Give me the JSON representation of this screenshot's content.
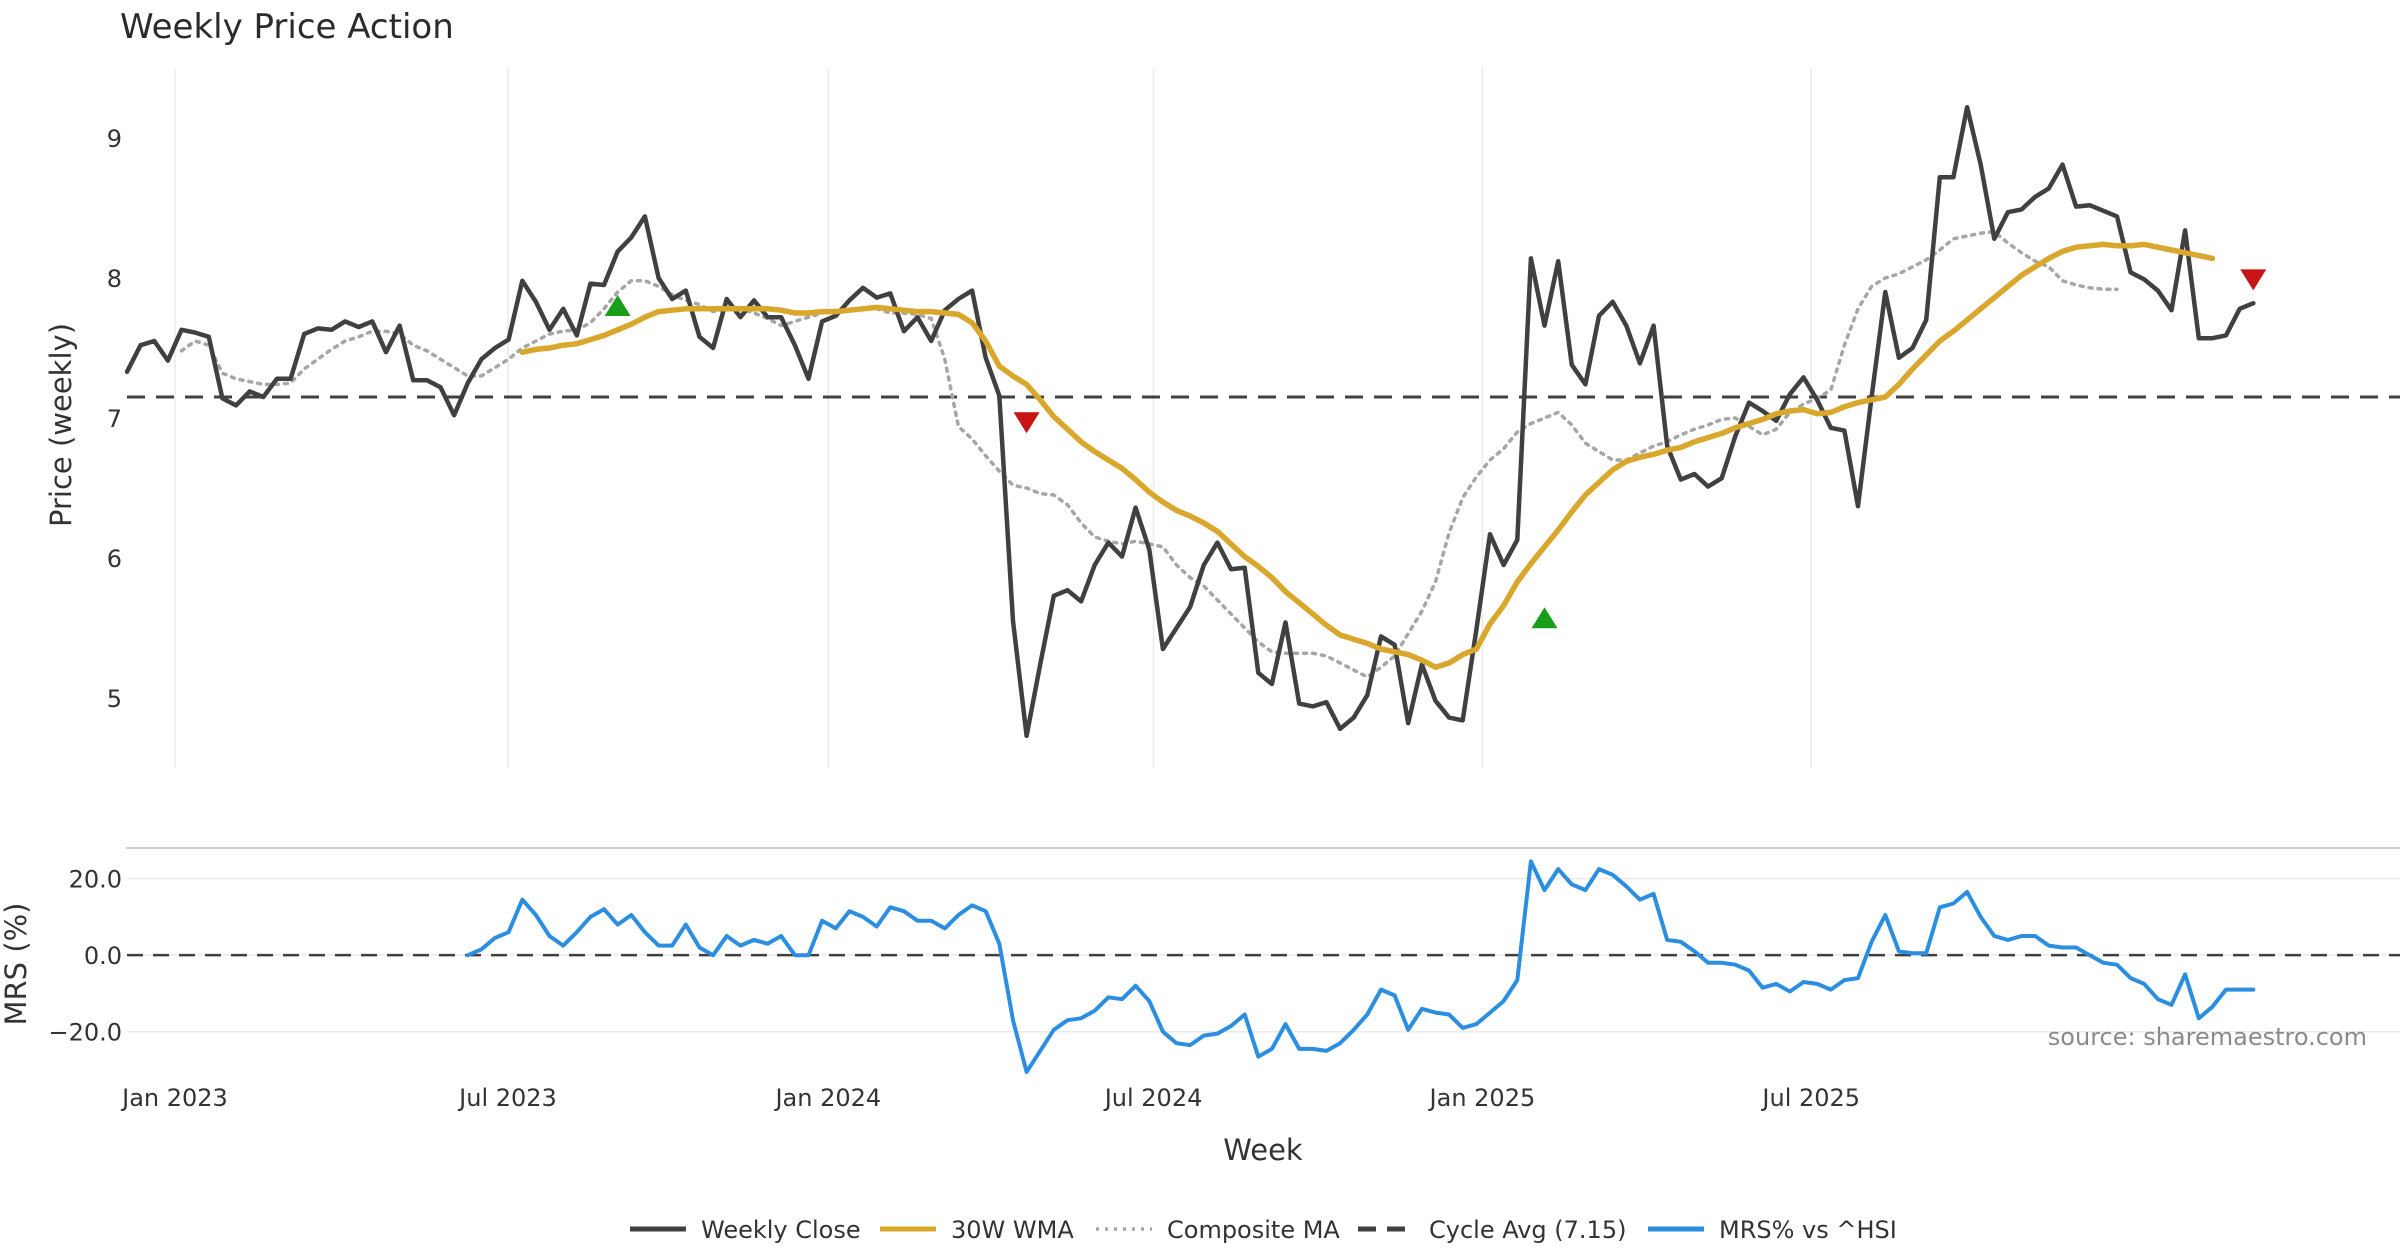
{
  "chart_data": {
    "type": "line",
    "title": "Weekly Price Action",
    "xlabel": "Week",
    "x_ticks": [
      "Jan 2023",
      "Jul 2023",
      "Jan 2024",
      "Jul 2024",
      "Jan 2025",
      "Jul 2025"
    ],
    "price_panel": {
      "ylabel": "Price (weekly)",
      "ylim": [
        4.5,
        9.5
      ],
      "yticks": [
        "5",
        "6",
        "7",
        "8",
        "9"
      ],
      "cycle_avg": 7.15,
      "series": [
        {
          "name": "Weekly Close",
          "start_week": 0,
          "color": "#404040",
          "values": [
            7.33,
            7.52,
            7.55,
            7.41,
            7.63,
            7.61,
            7.58,
            7.14,
            7.09,
            7.19,
            7.15,
            7.28,
            7.28,
            7.6,
            7.64,
            7.63,
            7.69,
            7.65,
            7.69,
            7.47,
            7.66,
            7.27,
            7.27,
            7.22,
            7.02,
            7.25,
            7.42,
            7.5,
            7.56,
            7.98,
            7.83,
            7.63,
            7.78,
            7.59,
            7.96,
            7.95,
            8.19,
            8.29,
            8.44,
            8.0,
            7.85,
            7.91,
            7.58,
            7.5,
            7.85,
            7.72,
            7.84,
            7.72,
            7.72,
            7.52,
            7.28,
            7.69,
            7.73,
            7.84,
            7.93,
            7.86,
            7.89,
            7.62,
            7.72,
            7.55,
            7.77,
            7.85,
            7.91,
            7.43,
            7.16,
            5.55,
            4.73,
            5.24,
            5.73,
            5.77,
            5.69,
            5.95,
            6.11,
            6.01,
            6.36,
            6.06,
            5.35,
            5.5,
            5.65,
            5.95,
            6.11,
            5.92,
            5.93,
            5.18,
            5.1,
            5.54,
            4.96,
            4.94,
            4.97,
            4.78,
            4.86,
            5.02,
            5.44,
            5.38,
            4.82,
            5.24,
            4.98,
            4.86,
            4.84,
            5.49,
            6.17,
            5.95,
            6.13,
            8.14,
            7.66,
            8.12,
            7.38,
            7.24,
            7.73,
            7.83,
            7.66,
            7.39,
            7.66,
            6.8,
            6.56,
            6.6,
            6.51,
            6.57,
            6.87,
            7.11,
            7.05,
            6.98,
            7.17,
            7.29,
            7.13,
            6.93,
            6.91,
            6.37,
            7.15,
            7.9,
            7.43,
            7.5,
            7.7,
            8.72,
            8.72,
            9.22,
            8.81,
            8.28,
            8.47,
            8.49,
            8.58,
            8.64,
            8.81,
            8.51,
            8.52,
            8.48,
            8.44,
            8.04,
            7.99,
            7.91,
            7.77,
            8.34,
            7.57,
            7.57,
            7.59,
            7.78,
            7.82
          ]
        },
        {
          "name": "30W WMA",
          "start_week": 29,
          "color": "#d8a72c",
          "values": [
            7.47,
            7.49,
            7.5,
            7.52,
            7.53,
            7.56,
            7.59,
            7.63,
            7.67,
            7.72,
            7.76,
            7.77,
            7.78,
            7.78,
            7.78,
            7.78,
            7.78,
            7.78,
            7.78,
            7.77,
            7.75,
            7.75,
            7.76,
            7.76,
            7.77,
            7.78,
            7.79,
            7.78,
            7.77,
            7.76,
            7.76,
            7.75,
            7.74,
            7.68,
            7.55,
            7.37,
            7.3,
            7.24,
            7.13,
            7.01,
            6.92,
            6.83,
            6.76,
            6.7,
            6.64,
            6.56,
            6.47,
            6.4,
            6.34,
            6.3,
            6.25,
            6.19,
            6.1,
            6.01,
            5.94,
            5.86,
            5.76,
            5.68,
            5.6,
            5.52,
            5.45,
            5.42,
            5.39,
            5.35,
            5.33,
            5.31,
            5.27,
            5.22,
            5.25,
            5.31,
            5.35,
            5.53,
            5.66,
            5.83,
            5.96,
            6.08,
            6.2,
            6.33,
            6.45,
            6.54,
            6.63,
            6.69,
            6.72,
            6.74,
            6.77,
            6.79,
            6.83,
            6.86,
            6.89,
            6.93,
            6.96,
            6.99,
            7.03,
            7.05,
            7.06,
            7.03,
            7.04,
            7.08,
            7.11,
            7.13,
            7.15,
            7.24,
            7.35,
            7.45,
            7.55,
            7.62,
            7.7,
            7.78,
            7.86,
            7.94,
            8.02,
            8.08,
            8.14,
            8.19,
            8.22,
            8.23,
            8.24,
            8.23,
            8.23,
            8.24,
            8.22,
            8.2,
            8.18,
            8.16,
            8.14
          ]
        },
        {
          "name": "Composite MA",
          "start_week": 4,
          "color": "#a6a6a6",
          "values": [
            7.48,
            7.55,
            7.52,
            7.32,
            7.28,
            7.26,
            7.24,
            7.24,
            7.25,
            7.35,
            7.42,
            7.49,
            7.55,
            7.58,
            7.62,
            7.62,
            7.6,
            7.52,
            7.48,
            7.42,
            7.36,
            7.3,
            7.3,
            7.36,
            7.42,
            7.5,
            7.55,
            7.6,
            7.62,
            7.63,
            7.68,
            7.78,
            7.9,
            7.98,
            7.98,
            7.94,
            7.88,
            7.84,
            7.81,
            7.76,
            7.78,
            7.78,
            7.75,
            7.71,
            7.66,
            7.69,
            7.72,
            7.75,
            7.77,
            7.77,
            7.78,
            7.78,
            7.75,
            7.75,
            7.74,
            7.71,
            7.42,
            6.94,
            6.85,
            6.73,
            6.62,
            6.52,
            6.5,
            6.46,
            6.45,
            6.38,
            6.25,
            6.15,
            6.12,
            6.1,
            6.12,
            6.1,
            6.08,
            5.95,
            5.86,
            5.8,
            5.7,
            5.6,
            5.5,
            5.4,
            5.33,
            5.32,
            5.32,
            5.32,
            5.3,
            5.25,
            5.2,
            5.15,
            5.22,
            5.3,
            5.46,
            5.62,
            5.83,
            6.18,
            6.43,
            6.58,
            6.7,
            6.78,
            6.9,
            6.96,
            7.0,
            7.04,
            6.95,
            6.82,
            6.76,
            6.7,
            6.7,
            6.75,
            6.8,
            6.83,
            6.88,
            6.92,
            6.95,
            6.99,
            7.0,
            6.94,
            6.88,
            6.92,
            7.04,
            7.1,
            7.14,
            7.2,
            7.52,
            7.78,
            7.94,
            8.0,
            8.03,
            8.08,
            8.13,
            8.2,
            8.28,
            8.3,
            8.32,
            8.33,
            8.25,
            8.18,
            8.12,
            8.08,
            7.98,
            7.95,
            7.93,
            7.92,
            7.92
          ]
        }
      ],
      "signals": [
        {
          "type": "buy",
          "week": 36,
          "value": 7.8,
          "color": "#1a9e1a"
        },
        {
          "type": "sell",
          "week": 66,
          "value": 6.97,
          "color": "#c81414"
        },
        {
          "type": "buy",
          "week": 104,
          "value": 5.57,
          "color": "#1a9e1a"
        },
        {
          "type": "sell",
          "week": 156,
          "value": 7.99,
          "color": "#c81414"
        }
      ]
    },
    "mrs_panel": {
      "ylabel": "MRS (%)",
      "ylim": [
        -30,
        28
      ],
      "yticks": [
        "20.0",
        "0.0",
        "−20.0"
      ],
      "series": [
        {
          "name": "MRS% vs ^HSI",
          "start_week": 25,
          "color": "#2b8ee0",
          "values": [
            0,
            1.5,
            4.5,
            6,
            14.5,
            10.5,
            5,
            2.5,
            6,
            10,
            12,
            8,
            10.5,
            6,
            2.5,
            2.5,
            8,
            2,
            0,
            5,
            2.5,
            4,
            3,
            5,
            0,
            0,
            9,
            7,
            11.5,
            10,
            7.5,
            12.5,
            11.5,
            9,
            9,
            7,
            10.5,
            13,
            11.5,
            3,
            -17,
            -30.5,
            -25,
            -19.5,
            -17,
            -16.5,
            -14.5,
            -11,
            -11.5,
            -8,
            -12,
            -20,
            -23,
            -23.5,
            -21,
            -20.5,
            -18.5,
            -15.5,
            -26.5,
            -24.5,
            -18,
            -24.5,
            -24.5,
            -25,
            -23,
            -19.5,
            -15.5,
            -9,
            -10.5,
            -19.5,
            -14,
            -15,
            -15.5,
            -19,
            -18,
            -15,
            -12,
            -6.5,
            24.5,
            17,
            22.5,
            18.5,
            17,
            22.5,
            21,
            18,
            14.5,
            16,
            4,
            3.5,
            1,
            -2,
            -2,
            -2.5,
            -4,
            -8.5,
            -7.5,
            -9.5,
            -7,
            -7.5,
            -9,
            -6.5,
            -6,
            3.5,
            10.5,
            1,
            0.5,
            0.5,
            12.5,
            13.5,
            16.5,
            10,
            5,
            4,
            5,
            5,
            2.5,
            2,
            2,
            0,
            -2,
            -2.5,
            -6,
            -7.5,
            -11.5,
            -13,
            -5,
            -16.5,
            -13.5,
            -9,
            -9,
            -9
          ]
        }
      ]
    },
    "legend": [
      {
        "label": "Weekly Close",
        "style": "solid",
        "color": "#404040"
      },
      {
        "label": "30W WMA",
        "style": "solid",
        "color": "#d8a72c"
      },
      {
        "label": "Composite MA",
        "style": "dotted",
        "color": "#a6a6a6"
      },
      {
        "label": "Cycle Avg (7.15)",
        "style": "dashed",
        "color": "#404040"
      },
      {
        "label": "MRS% vs ^HSI",
        "style": "solid",
        "color": "#2b8ee0"
      }
    ],
    "source": "source: sharemaestro.com"
  }
}
